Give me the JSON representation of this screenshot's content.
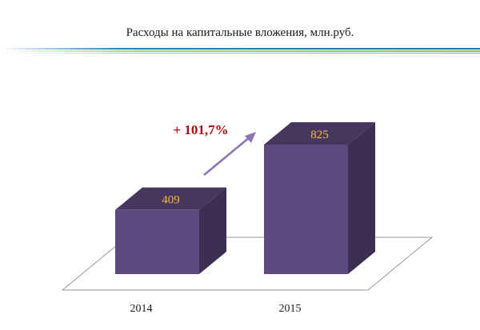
{
  "title": "Расходы на капитальные вложения, млн.руб.",
  "annotation": "+ 101,7%",
  "colors": {
    "bar_front": "#5f4a7f",
    "bar_top": "#47375f",
    "bar_side": "#3d2f52",
    "data_label": "#f5b94a",
    "annotation": "#a50f14",
    "arrow": "#8d74b5",
    "decor_line_1": "#1f6fb8",
    "decor_line_2": "#8cc63e",
    "decor_line_3": "#66b4dc"
  },
  "chart_data": {
    "type": "bar",
    "categories": [
      "2014",
      "2015"
    ],
    "values": [
      409,
      825
    ],
    "data_labels": [
      "409",
      "825"
    ]
  }
}
